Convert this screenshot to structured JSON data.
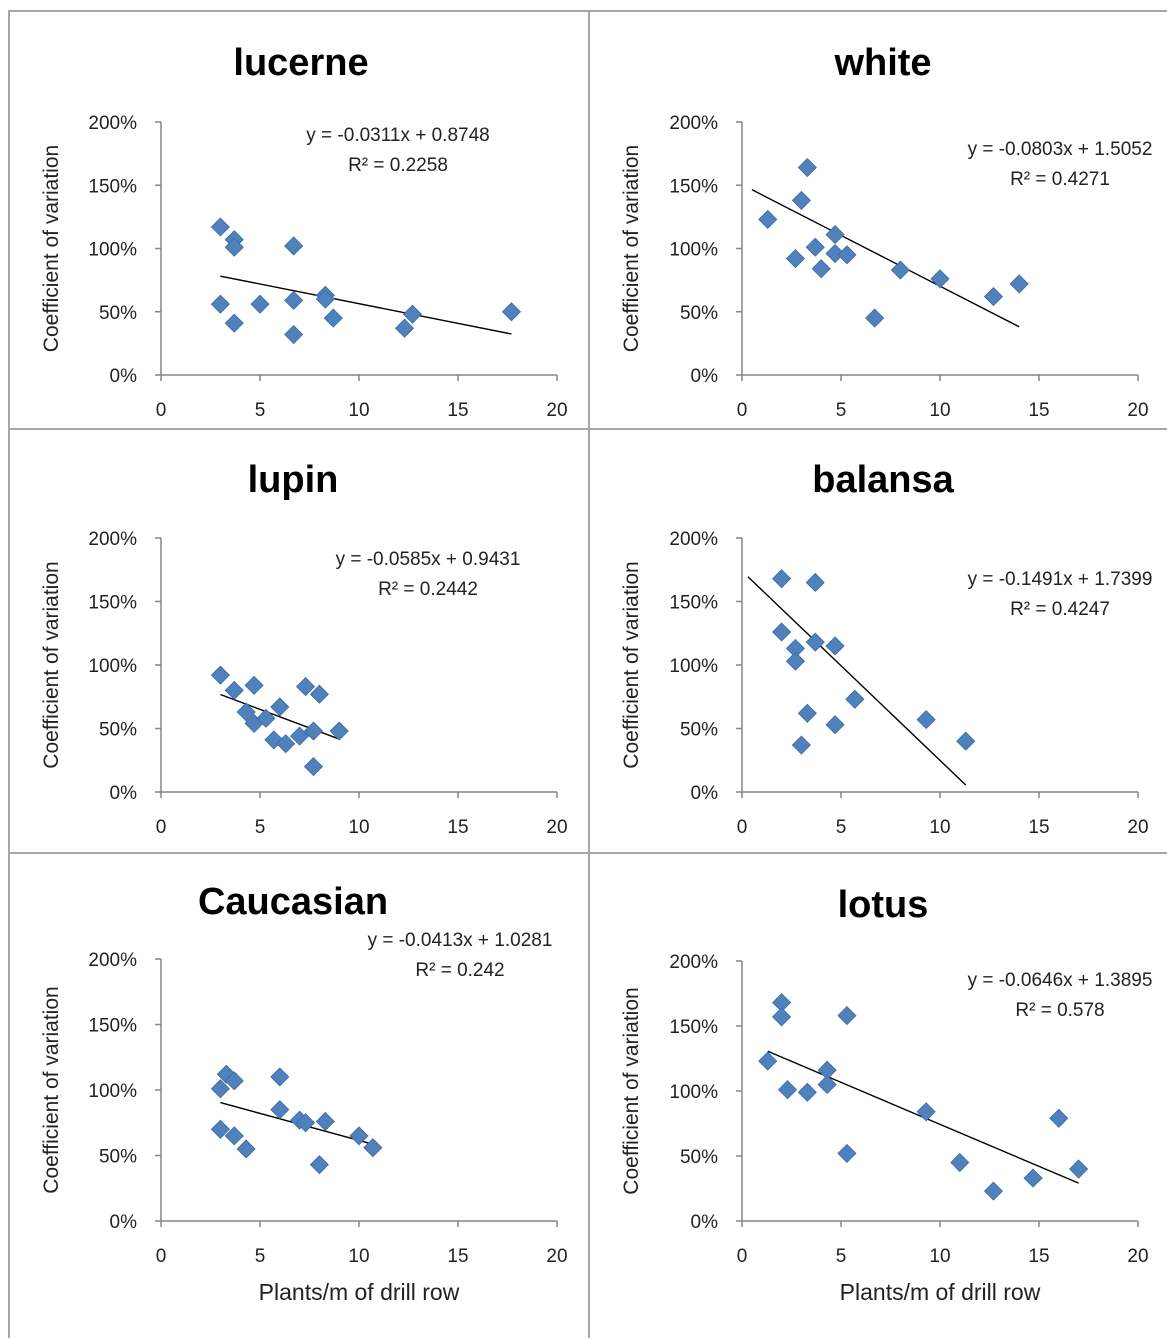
{
  "chart_data": [
    {
      "type": "scatter",
      "title": "lucerne",
      "ylabel": "Coefficient of variation",
      "xlabel": "",
      "xlim": [
        0,
        20
      ],
      "ylim": [
        0,
        2
      ],
      "xticks": [
        "0",
        "5",
        "10",
        "15",
        "20"
      ],
      "yticks": [
        "0%",
        "50%",
        "100%",
        "150%",
        "200%"
      ],
      "marker_color": "#4f81bd",
      "points": [
        [
          3.0,
          1.17
        ],
        [
          3.7,
          1.07
        ],
        [
          3.7,
          1.01
        ],
        [
          6.7,
          1.02
        ],
        [
          3.0,
          0.56
        ],
        [
          5.0,
          0.56
        ],
        [
          3.7,
          0.41
        ],
        [
          6.7,
          0.59
        ],
        [
          8.3,
          0.63
        ],
        [
          8.3,
          0.6
        ],
        [
          8.7,
          0.45
        ],
        [
          6.7,
          0.32
        ],
        [
          12.3,
          0.37
        ],
        [
          12.7,
          0.48
        ],
        [
          17.7,
          0.5
        ]
      ],
      "trendline": {
        "slope": -0.0311,
        "intercept": 0.8748,
        "x_range": [
          3.0,
          17.7
        ]
      },
      "equation": "y = -0.0311x + 0.8748",
      "r2": "R² = 0.2258"
    },
    {
      "type": "scatter",
      "title": "white",
      "ylabel": "Coefficient of variation",
      "xlabel": "",
      "xlim": [
        0,
        20
      ],
      "ylim": [
        0,
        2
      ],
      "xticks": [
        "0",
        "5",
        "10",
        "15",
        "20"
      ],
      "yticks": [
        "0%",
        "50%",
        "100%",
        "150%",
        "200%"
      ],
      "marker_color": "#4f81bd",
      "points": [
        [
          3.3,
          1.64
        ],
        [
          1.3,
          1.23
        ],
        [
          3.0,
          1.38
        ],
        [
          2.7,
          0.92
        ],
        [
          3.7,
          1.01
        ],
        [
          4.0,
          0.84
        ],
        [
          4.7,
          1.11
        ],
        [
          4.7,
          0.96
        ],
        [
          5.3,
          0.95
        ],
        [
          8.0,
          0.83
        ],
        [
          10.0,
          0.76
        ],
        [
          6.7,
          0.45
        ],
        [
          12.7,
          0.62
        ],
        [
          14.0,
          0.72
        ]
      ],
      "trendline": {
        "slope": -0.0803,
        "intercept": 1.5052,
        "x_range": [
          0.5,
          14.0
        ]
      },
      "equation": "y = -0.0803x + 1.5052",
      "r2": "R² = 0.4271"
    },
    {
      "type": "scatter",
      "title": "lupin",
      "ylabel": "Coefficient of variation",
      "xlabel": "",
      "xlim": [
        0,
        20
      ],
      "ylim": [
        0,
        2
      ],
      "xticks": [
        "0",
        "5",
        "10",
        "15",
        "20"
      ],
      "yticks": [
        "0%",
        "50%",
        "100%",
        "150%",
        "200%"
      ],
      "marker_color": "#4f81bd",
      "points": [
        [
          3.0,
          0.92
        ],
        [
          3.7,
          0.8
        ],
        [
          4.7,
          0.84
        ],
        [
          4.3,
          0.63
        ],
        [
          4.7,
          0.54
        ],
        [
          5.3,
          0.58
        ],
        [
          5.7,
          0.41
        ],
        [
          6.0,
          0.67
        ],
        [
          6.3,
          0.38
        ],
        [
          7.0,
          0.44
        ],
        [
          7.3,
          0.83
        ],
        [
          7.7,
          0.48
        ],
        [
          8.0,
          0.77
        ],
        [
          7.7,
          0.2
        ],
        [
          9.0,
          0.48
        ]
      ],
      "trendline": {
        "slope": -0.0585,
        "intercept": 0.9431,
        "x_range": [
          3.0,
          9.0
        ]
      },
      "equation": "y = -0.0585x + 0.9431",
      "r2": "R² = 0.2442"
    },
    {
      "type": "scatter",
      "title": "balansa",
      "ylabel": "Coefficient of variation",
      "xlabel": "",
      "xlim": [
        0,
        20
      ],
      "ylim": [
        0,
        2
      ],
      "xticks": [
        "0",
        "5",
        "10",
        "15",
        "20"
      ],
      "yticks": [
        "0%",
        "50%",
        "100%",
        "150%",
        "200%"
      ],
      "marker_color": "#4f81bd",
      "points": [
        [
          2.0,
          1.68
        ],
        [
          3.7,
          1.65
        ],
        [
          2.0,
          1.26
        ],
        [
          2.7,
          1.13
        ],
        [
          2.7,
          1.03
        ],
        [
          3.7,
          1.18
        ],
        [
          4.7,
          1.15
        ],
        [
          3.3,
          0.62
        ],
        [
          3.0,
          0.37
        ],
        [
          5.7,
          0.73
        ],
        [
          4.7,
          0.53
        ],
        [
          9.3,
          0.57
        ],
        [
          11.3,
          0.4
        ]
      ],
      "trendline": {
        "slope": -0.1491,
        "intercept": 1.7399,
        "x_range": [
          0.3,
          11.3
        ]
      },
      "equation": "y = -0.1491x + 1.7399",
      "r2": "R² = 0.4247"
    },
    {
      "type": "scatter",
      "title": "Caucasian",
      "ylabel": "Coefficient of variation",
      "xlabel": "Plants/m of drill row",
      "xlim": [
        0,
        20
      ],
      "ylim": [
        0,
        2
      ],
      "xticks": [
        "0",
        "5",
        "10",
        "15",
        "20"
      ],
      "yticks": [
        "0%",
        "50%",
        "100%",
        "150%",
        "200%"
      ],
      "marker_color": "#4f81bd",
      "points": [
        [
          3.0,
          1.01
        ],
        [
          3.3,
          1.12
        ],
        [
          3.7,
          1.07
        ],
        [
          6.0,
          1.1
        ],
        [
          6.0,
          0.85
        ],
        [
          7.0,
          0.77
        ],
        [
          7.3,
          0.75
        ],
        [
          8.3,
          0.76
        ],
        [
          3.0,
          0.7
        ],
        [
          3.7,
          0.65
        ],
        [
          4.3,
          0.55
        ],
        [
          8.0,
          0.43
        ],
        [
          10.0,
          0.65
        ],
        [
          10.7,
          0.56
        ]
      ],
      "trendline": {
        "slope": -0.0413,
        "intercept": 1.0281,
        "x_range": [
          3.0,
          10.7
        ]
      },
      "equation": "y = -0.0413x + 1.0281",
      "r2": "R² = 0.242"
    },
    {
      "type": "scatter",
      "title": "lotus",
      "ylabel": "Coefficient of variation",
      "xlabel": "Plants/m of drill row",
      "xlim": [
        0,
        20
      ],
      "ylim": [
        0,
        2
      ],
      "xticks": [
        "0",
        "5",
        "10",
        "15",
        "20"
      ],
      "yticks": [
        "0%",
        "50%",
        "100%",
        "150%",
        "200%"
      ],
      "marker_color": "#4f81bd",
      "points": [
        [
          2.0,
          1.68
        ],
        [
          2.0,
          1.57
        ],
        [
          5.3,
          1.58
        ],
        [
          1.3,
          1.23
        ],
        [
          2.3,
          1.01
        ],
        [
          3.3,
          0.99
        ],
        [
          4.3,
          1.16
        ],
        [
          4.3,
          1.05
        ],
        [
          5.3,
          0.52
        ],
        [
          9.3,
          0.84
        ],
        [
          11.0,
          0.45
        ],
        [
          12.7,
          0.23
        ],
        [
          14.7,
          0.33
        ],
        [
          16.0,
          0.79
        ],
        [
          17.0,
          0.4
        ]
      ],
      "trendline": {
        "slope": -0.0646,
        "intercept": 1.3895,
        "x_range": [
          1.3,
          17.0
        ]
      },
      "equation": "y = -0.0646x + 1.3895",
      "r2": "R² = 0.578"
    }
  ]
}
